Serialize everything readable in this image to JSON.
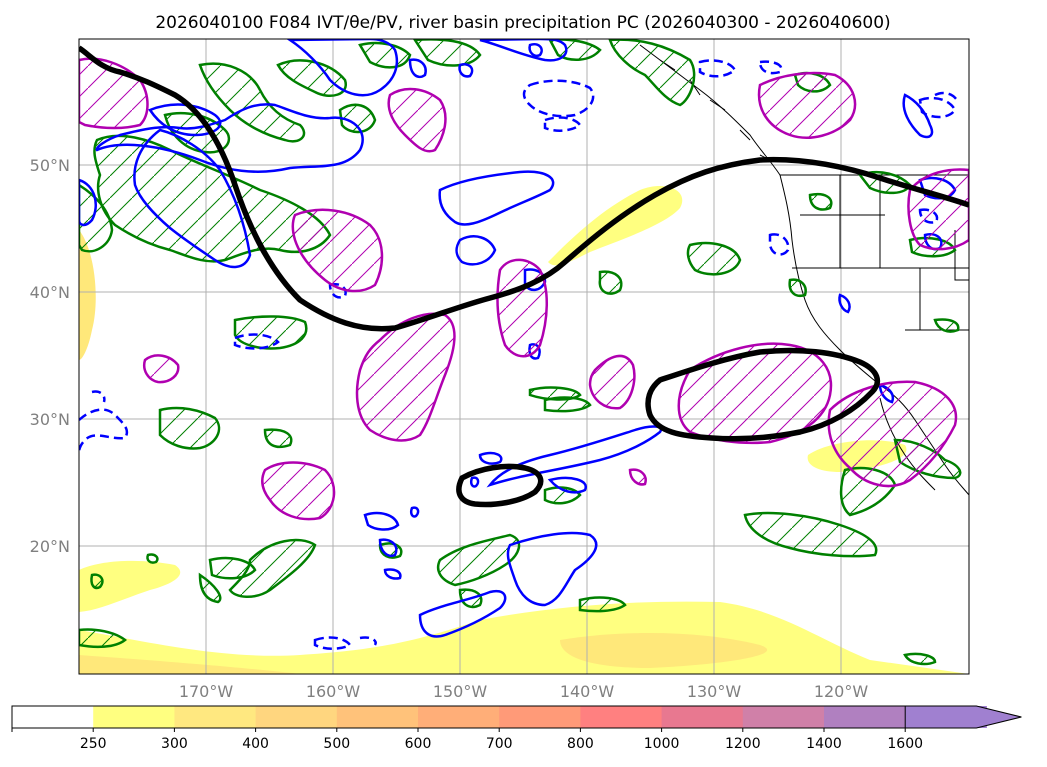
{
  "title": "2026040100 F084 IVT/θe/PV, river basin precipitation PC (2026040300 - 2026040600)",
  "map": {
    "region": "North Pacific Ocean / west coast of North America",
    "lat_labels": [
      "20°N",
      "30°N",
      "40°N",
      "50°N"
    ],
    "lon_labels": [
      "170°W",
      "160°W",
      "150°W",
      "140°W",
      "130°W",
      "120°W"
    ],
    "extent": {
      "lon": [
        -180,
        -110
      ],
      "lat": [
        10,
        60
      ]
    },
    "layers": {
      "ivt_fill": "#ffff66",
      "theta_e_contour": "#000000",
      "pv_positive": "#008000",
      "pv_negative": "#0000ff",
      "precip_pc": "#cc00cc"
    }
  },
  "colorbar": {
    "ticks": [
      "250",
      "300",
      "400",
      "500",
      "600",
      "700",
      "800",
      "1000",
      "1200",
      "1400",
      "1600"
    ],
    "colors": [
      "#ffffff",
      "#ffff80",
      "#ffe880",
      "#ffd67f",
      "#ffc27a",
      "#ffae78",
      "#ff9a78",
      "#ff8080",
      "#e87890",
      "#d080a8",
      "#b080c0",
      "#a080d0"
    ]
  }
}
